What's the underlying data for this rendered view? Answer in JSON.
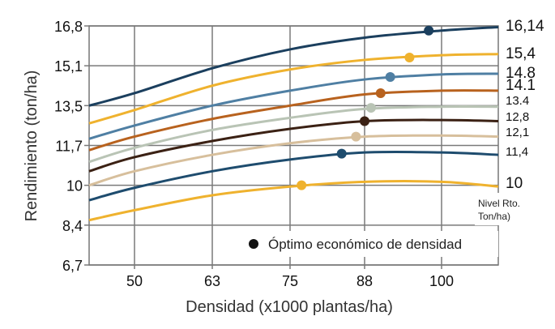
{
  "chart_data": {
    "type": "line",
    "title": "",
    "xlabel": "Densidad (x1000 plantas/ha)",
    "ylabel": "Rendimiento (ton/ha)",
    "x_ticks": [
      50,
      63,
      75,
      88,
      100
    ],
    "y_ticks": [
      "16,8",
      "15,1",
      "13,5",
      "11,7",
      "10",
      "8,4",
      "6,7"
    ],
    "y_tick_values": [
      16.8,
      15.1,
      13.5,
      11.7,
      10,
      8.4,
      6.7
    ],
    "xlim": [
      44,
      109
    ],
    "ylim": [
      6.7,
      16.8
    ],
    "grid": true,
    "x": [
      44,
      50,
      63,
      75,
      88,
      100,
      109
    ],
    "series": [
      {
        "name": "16,14",
        "color": "#1b3f5e",
        "values": [
          13.5,
          14.0,
          15.0,
          15.8,
          16.3,
          16.6,
          16.75
        ],
        "optimum": {
          "x": 98,
          "y": 16.6
        }
      },
      {
        "name": "15,4",
        "color": "#efb22e",
        "values": [
          12.7,
          13.3,
          14.3,
          14.95,
          15.35,
          15.55,
          15.6
        ],
        "optimum": {
          "x": 95,
          "y": 15.45
        }
      },
      {
        "name": "14.8",
        "color": "#4f7fa3",
        "values": [
          12.0,
          12.6,
          13.5,
          14.1,
          14.55,
          14.75,
          14.78
        ],
        "optimum": {
          "x": 92,
          "y": 14.65
        }
      },
      {
        "name": "14.1",
        "color": "#b8621e",
        "values": [
          11.5,
          12.1,
          12.9,
          13.5,
          13.95,
          14.1,
          14.1
        ],
        "optimum": {
          "x": 90.5,
          "y": 14.0
        }
      },
      {
        "name": "13.4",
        "color": "#b9c4b5",
        "values": [
          11.0,
          11.6,
          12.4,
          12.95,
          13.35,
          13.45,
          13.45
        ],
        "optimum": {
          "x": 89,
          "y": 13.4
        }
      },
      {
        "name": "12,8",
        "color": "#3b2114",
        "values": [
          10.6,
          11.2,
          11.9,
          12.45,
          12.8,
          12.85,
          12.8
        ],
        "optimum": {
          "x": 88,
          "y": 12.8
        }
      },
      {
        "name": "12,1",
        "color": "#d7bf9c",
        "values": [
          10.0,
          10.6,
          11.3,
          11.8,
          12.1,
          12.15,
          12.1
        ],
        "optimum": {
          "x": 86.5,
          "y": 12.1
        }
      },
      {
        "name": "11,4",
        "color": "#1e4c6e",
        "values": [
          9.4,
          9.9,
          10.6,
          11.1,
          11.4,
          11.4,
          11.3
        ],
        "optimum": {
          "x": 84,
          "y": 11.35
        }
      },
      {
        "name": "10",
        "color": "#efb22e",
        "values": [
          8.6,
          9.0,
          9.6,
          9.95,
          10.15,
          10.15,
          9.95
        ],
        "optimum": {
          "x": 77,
          "y": 10.0
        }
      }
    ],
    "legend": {
      "marker": "●",
      "text": "Óptimo económico de densidad",
      "position": "bottom-right"
    },
    "annotation": {
      "line1": "Nivel Rto.",
      "line2": "Ton/ha)"
    }
  }
}
